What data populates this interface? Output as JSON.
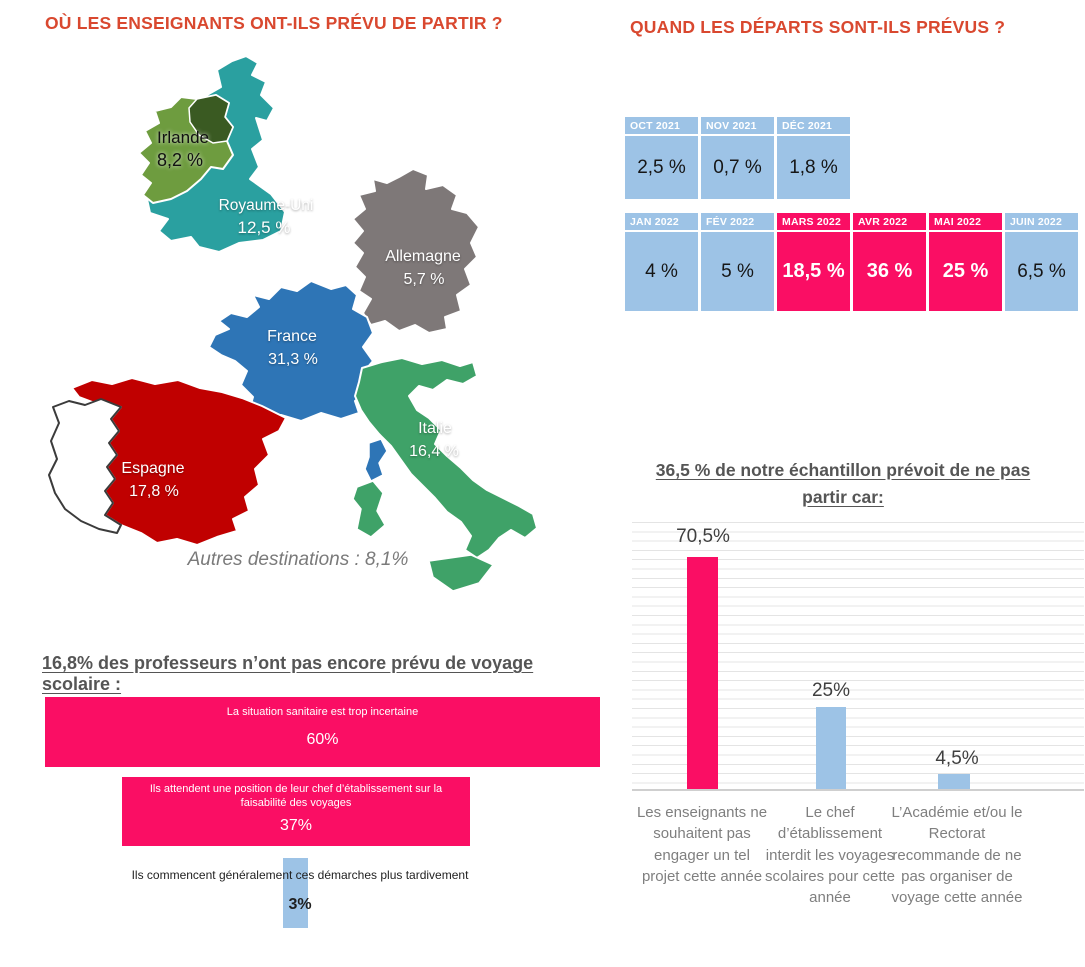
{
  "where": {
    "title": "OÙ LES ENSEIGNANTS ONT-ILS PRÉVU DE PARTIR ?",
    "countries": [
      {
        "name": "Irlande",
        "value": "8,2 %",
        "color": "#6E9C3F"
      },
      {
        "name": "Royaume-Uni",
        "value": "12,5 %",
        "color": "#2AA0A0"
      },
      {
        "name": "Allemagne",
        "value": "5,7 %",
        "color": "#7E7878"
      },
      {
        "name": "France",
        "value": "31,3 %",
        "color": "#2E75B6"
      },
      {
        "name": "Espagne",
        "value": "17,8 %",
        "color": "#C00000"
      },
      {
        "name": "Italie",
        "value": "16,4 %",
        "color": "#3FA268"
      }
    ],
    "other_note": "Autres destinations : 8,1%"
  },
  "when": {
    "title": "QUAND LES DÉPARTS SONT-ILS PRÉVUS ?",
    "months_2021": [
      {
        "label": "OCT 2021",
        "value": "2,5 %"
      },
      {
        "label": "NOV 2021",
        "value": "0,7 %"
      },
      {
        "label": "DÉC 2021",
        "value": "1,8 %"
      }
    ],
    "months_2022": [
      {
        "label": "JAN 2022",
        "value": "4 %"
      },
      {
        "label": "FÉV 2022",
        "value": "5 %"
      },
      {
        "label": "MARS 2022",
        "value": "18,5 %"
      },
      {
        "label": "AVR 2022",
        "value": "36 %"
      },
      {
        "label": "MAI 2022",
        "value": "25 %"
      },
      {
        "label": "JUIN 2022",
        "value": "6,5 %"
      }
    ]
  },
  "not_planned": {
    "title": "16,8% des professeurs n’ont pas encore prévu de voyage scolaire :",
    "bars": [
      {
        "label": "La situation sanitaire est trop incertaine",
        "value": "60%"
      },
      {
        "label": "Ils attendent une position de leur chef d’établissement sur la faisabilité des voyages",
        "value": "37%"
      },
      {
        "label": "Ils commencent généralement ces démarches plus tardivement",
        "value": "3%"
      }
    ]
  },
  "no_departure": {
    "title": "36,5 % de notre échantillon prévoit de ne pas partir car:",
    "bars": [
      {
        "label": "Les enseignants ne souhaitent pas engager un tel projet cette année",
        "value": "70,5%"
      },
      {
        "label": "Le chef d’établissement interdit les voyages scolaires pour cette année",
        "value": "25%"
      },
      {
        "label": "L’Académie et/ou le Rectorat recommande de ne pas organiser de voyage cette année",
        "value": "4,5%"
      }
    ]
  },
  "colors": {
    "accent_title": "#D9482F",
    "pink": "#FA0E64",
    "light_blue": "#9DC3E6"
  },
  "chart_data": [
    {
      "type": "map",
      "title": "OÙ LES ENSEIGNANTS ONT-ILS PRÉVU DE PARTIR ?",
      "unit": "%",
      "categories": [
        "France",
        "Espagne",
        "Italie",
        "Royaume-Uni",
        "Irlande",
        "Allemagne",
        "Autres destinations"
      ],
      "values": [
        31.3,
        17.8,
        16.4,
        12.5,
        8.2,
        5.7,
        8.1
      ],
      "colors": [
        "#2E75B6",
        "#C00000",
        "#3FA268",
        "#2AA0A0",
        "#6E9C3F",
        "#7E7878",
        null
      ]
    },
    {
      "type": "table",
      "title": "QUAND LES DÉPARTS SONT-ILS PRÉVUS ?",
      "unit": "%",
      "categories": [
        "OCT 2021",
        "NOV 2021",
        "DÉC 2021",
        "JAN 2022",
        "FÉV 2022",
        "MARS 2022",
        "AVR 2022",
        "MAI 2022",
        "JUIN 2022"
      ],
      "values": [
        2.5,
        0.7,
        1.8,
        4,
        5,
        18.5,
        36,
        25,
        6.5
      ],
      "highlighted_categories": [
        "MARS 2022",
        "AVR 2022",
        "MAI 2022"
      ]
    },
    {
      "type": "bar",
      "title": "36,5 % de notre échantillon prévoit de ne pas partir car:",
      "unit": "%",
      "grid": true,
      "ylim": [
        0,
        80
      ],
      "categories": [
        "Les enseignants ne souhaitent pas engager un tel projet cette année",
        "Le chef d’établissement interdit les voyages scolaires pour cette année",
        "L’Académie et/ou le Rectorat recommande de ne pas organiser de voyage cette année"
      ],
      "values": [
        70.5,
        25,
        4.5
      ],
      "bar_colors": [
        "#FA0E64",
        "#9DC3E6",
        "#9DC3E6"
      ]
    },
    {
      "type": "bar",
      "orientation": "horizontal",
      "title": "16,8% des professeurs n’ont pas encore prévu de voyage scolaire :",
      "unit": "%",
      "categories": [
        "La situation sanitaire est trop incertaine",
        "Ils attendent une position de leur chef d’établissement sur la faisabilité des voyages",
        "Ils commencent généralement ces démarches plus tardivement"
      ],
      "values": [
        60,
        37,
        3
      ],
      "bar_colors": [
        "#FA0E64",
        "#FA0E64",
        "#9DC3E6"
      ]
    }
  ]
}
